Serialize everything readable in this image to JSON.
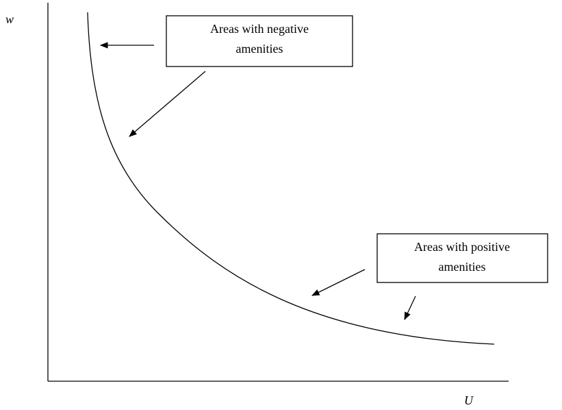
{
  "axes": {
    "y_label": "w",
    "x_label": "U"
  },
  "callouts": [
    {
      "lines": [
        "Areas with negative",
        "amenities"
      ]
    },
    {
      "lines": [
        "Areas with positive",
        "amenities"
      ]
    }
  ]
}
